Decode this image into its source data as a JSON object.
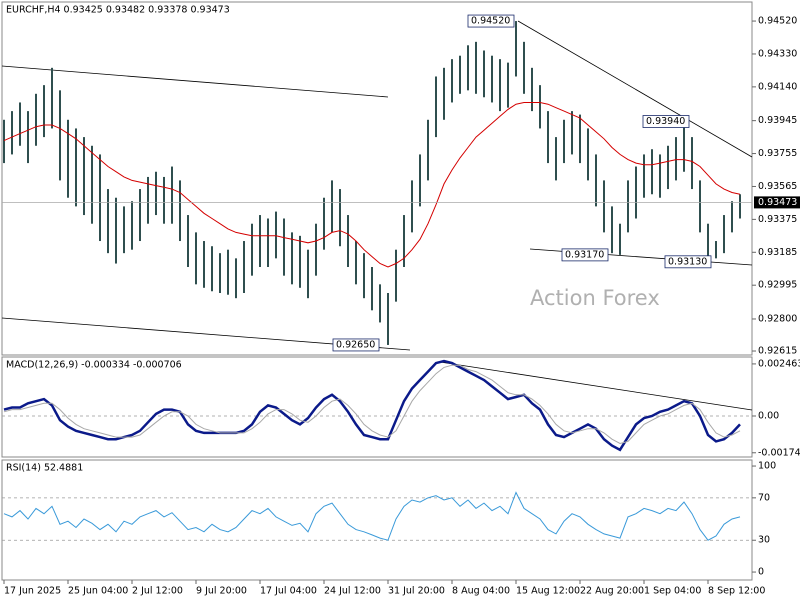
{
  "chart_data": [
    {
      "type": "range_bar",
      "title": "EURCHF,H4  0.93425 0.93482 0.93378 0.93473",
      "categories": [
        "17 Jun 2025",
        null,
        null,
        null,
        null,
        null,
        null,
        null,
        "25 Jun 04:00",
        null,
        null,
        null,
        null,
        null,
        null,
        null,
        "2 Jul 12:00",
        null,
        null,
        null,
        null,
        null,
        null,
        null,
        "9 Jul 20:00",
        null,
        null,
        null,
        null,
        null,
        null,
        null,
        "17 Jul 04:00",
        null,
        null,
        null,
        null,
        null,
        null,
        null,
        "24 Jul 12:00",
        null,
        null,
        null,
        null,
        null,
        null,
        null,
        "31 Jul 20:00",
        null,
        null,
        null,
        null,
        null,
        null,
        null,
        "8 Aug 04:00",
        null,
        null,
        null,
        null,
        null,
        null,
        null,
        "15 Aug 12:00",
        null,
        null,
        null,
        null,
        null,
        null,
        null,
        "22 Aug 20:00",
        null,
        null,
        null,
        null,
        null,
        null,
        null,
        "1 Sep 04:00",
        null,
        null,
        null,
        null,
        null,
        null,
        null,
        "8 Sep 12:00",
        null,
        null,
        null,
        null
      ],
      "high": [
        0.9395,
        0.94,
        0.9405,
        0.94,
        0.941,
        0.9415,
        0.9425,
        0.9412,
        0.9395,
        0.939,
        0.9385,
        0.938,
        0.9375,
        0.9355,
        0.935,
        0.9345,
        0.9348,
        0.9355,
        0.9362,
        0.9365,
        0.9362,
        0.9368,
        0.936,
        0.934,
        0.933,
        0.9325,
        0.9322,
        0.9318,
        0.932,
        0.9315,
        0.9325,
        0.9335,
        0.934,
        0.9338,
        0.9342,
        0.9338,
        0.933,
        0.9328,
        0.932,
        0.9335,
        0.935,
        0.936,
        0.9355,
        0.934,
        0.9325,
        0.9318,
        0.931,
        0.93,
        0.9295,
        0.932,
        0.934,
        0.936,
        0.9375,
        0.9395,
        0.942,
        0.9425,
        0.943,
        0.9432,
        0.9438,
        0.944,
        0.9435,
        0.9432,
        0.943,
        0.9428,
        0.9452,
        0.944,
        0.9425,
        0.9415,
        0.94,
        0.9385,
        0.9395,
        0.94,
        0.9398,
        0.939,
        0.9375,
        0.936,
        0.9345,
        0.9335,
        0.936,
        0.9368,
        0.9375,
        0.9378,
        0.9375,
        0.938,
        0.9385,
        0.9394,
        0.9385,
        0.936,
        0.9335,
        0.9325,
        0.934,
        0.9348,
        0.9352
      ],
      "low": [
        0.937,
        0.9375,
        0.938,
        0.937,
        0.938,
        0.9385,
        0.939,
        0.936,
        0.935,
        0.9345,
        0.934,
        0.9335,
        0.9325,
        0.9318,
        0.9312,
        0.9318,
        0.932,
        0.9325,
        0.9335,
        0.934,
        0.9335,
        0.9335,
        0.9325,
        0.931,
        0.93,
        0.9298,
        0.9296,
        0.9295,
        0.9294,
        0.9292,
        0.9295,
        0.9305,
        0.931,
        0.931,
        0.9315,
        0.9305,
        0.93,
        0.9298,
        0.9292,
        0.9305,
        0.932,
        0.933,
        0.9322,
        0.931,
        0.93,
        0.9292,
        0.9285,
        0.9278,
        0.9265,
        0.929,
        0.931,
        0.933,
        0.9345,
        0.936,
        0.9385,
        0.9395,
        0.9405,
        0.941,
        0.9412,
        0.941,
        0.9408,
        0.9405,
        0.94,
        0.9402,
        0.942,
        0.941,
        0.94,
        0.939,
        0.937,
        0.936,
        0.937,
        0.9375,
        0.937,
        0.936,
        0.9345,
        0.933,
        0.9318,
        0.9317,
        0.933,
        0.9338,
        0.935,
        0.9352,
        0.935,
        0.9355,
        0.936,
        0.9365,
        0.9355,
        0.933,
        0.9313,
        0.9315,
        0.9318,
        0.933,
        0.9338
      ],
      "color": "#2f4f4f",
      "overlay": {
        "color": "#d40000",
        "values": [
          0.9383,
          0.9385,
          0.9387,
          0.9389,
          0.9391,
          0.9392,
          0.9392,
          0.939,
          0.9387,
          0.9384,
          0.938,
          0.9376,
          0.9372,
          0.9368,
          0.9365,
          0.9362,
          0.936,
          0.9359,
          0.9358,
          0.9357,
          0.9356,
          0.9355,
          0.9353,
          0.9349,
          0.9345,
          0.9341,
          0.9338,
          0.9335,
          0.9332,
          0.933,
          0.9329,
          0.9328,
          0.9328,
          0.9328,
          0.9328,
          0.9327,
          0.9326,
          0.9325,
          0.9324,
          0.9325,
          0.9327,
          0.933,
          0.9331,
          0.9329,
          0.9325,
          0.932,
          0.9316,
          0.9312,
          0.931,
          0.9312,
          0.9315,
          0.932,
          0.9326,
          0.9335,
          0.9346,
          0.9358,
          0.9366,
          0.9373,
          0.9379,
          0.9385,
          0.9389,
          0.9393,
          0.9397,
          0.9401,
          0.9404,
          0.9405,
          0.9405,
          0.9405,
          0.9404,
          0.9402,
          0.94,
          0.9398,
          0.9396,
          0.9392,
          0.9388,
          0.9384,
          0.9379,
          0.9375,
          0.9372,
          0.937,
          0.9369,
          0.9369,
          0.937,
          0.9371,
          0.9372,
          0.9372,
          0.9371,
          0.9368,
          0.9363,
          0.9358,
          0.9355,
          0.9353,
          0.9352
        ]
      },
      "ylim": [
        0.92592,
        0.9463
      ],
      "yticks": [
        {
          "value": 0.9452,
          "label": "0.94520"
        },
        {
          "value": 0.9433,
          "label": "0.94330"
        },
        {
          "value": 0.9414,
          "label": "0.94140"
        },
        {
          "value": 0.93945,
          "label": "0.93945"
        },
        {
          "value": 0.93755,
          "label": "0.93755"
        },
        {
          "value": 0.93565,
          "label": "0.93565"
        },
        {
          "value": 0.93375,
          "label": "0.93375"
        },
        {
          "value": 0.93185,
          "label": "0.93185"
        },
        {
          "value": 0.92995,
          "label": "0.92995"
        },
        {
          "value": 0.928,
          "label": "0.92800"
        },
        {
          "value": 0.92615,
          "label": "0.92615"
        }
      ],
      "last_price": {
        "value": 0.93473,
        "label": "0.93473"
      },
      "annotations": [
        {
          "value": 0.9452,
          "label": "0.94520"
        },
        {
          "value": 0.9394,
          "label": "0.93940"
        },
        {
          "value": 0.9317,
          "label": "0.93170"
        },
        {
          "value": 0.9313,
          "label": "0.93130"
        },
        {
          "value": 0.9265,
          "label": "0.92650"
        }
      ],
      "watermark": "Action Forex"
    },
    {
      "type": "line",
      "title": "MACD(12,26,9) -0.000334 -0.000706",
      "series": [
        {
          "color": "#0b1a8a",
          "values": [
            0.0003,
            0.0004,
            0.0004,
            0.0006,
            0.0007,
            0.0008,
            0.0005,
            -0.0002,
            -0.0005,
            -0.0007,
            -0.0008,
            -0.0009,
            -0.001,
            -0.0011,
            -0.0011,
            -0.001,
            -0.0009,
            -0.0007,
            -0.0003,
            0.0001,
            0.0003,
            0.0003,
            0.0002,
            -0.0004,
            -0.0007,
            -0.0008,
            -0.0008,
            -0.0008,
            -0.0008,
            -0.0008,
            -0.0007,
            -0.0004,
            0.0002,
            0.0005,
            0.0004,
            0.0001,
            -0.0002,
            -0.0004,
            -0.0001,
            0.0004,
            0.0008,
            0.001,
            0.0007,
            0.0002,
            -0.0004,
            -0.0009,
            -0.001,
            -0.0011,
            -0.0011,
            -0.0002,
            0.0007,
            0.0013,
            0.0017,
            0.0021,
            0.0025,
            0.0026,
            0.0025,
            0.0023,
            0.0021,
            0.0019,
            0.0017,
            0.0014,
            0.0011,
            0.0008,
            0.0009,
            0.001,
            0.0006,
            0.0003,
            -0.0004,
            -0.0009,
            -0.001,
            -0.0008,
            -0.0006,
            -0.0004,
            -0.0006,
            -0.0011,
            -0.0014,
            -0.0016,
            -0.001,
            -0.0004,
            -0.0001,
            0,
            0.0002,
            0.0003,
            0.0005,
            0.0007,
            0.0006,
            0,
            -0.0009,
            -0.0012,
            -0.0011,
            -0.0008,
            -0.0004
          ]
        },
        {
          "color": "#a8a8a8",
          "values": [
            0.0002,
            0.0003,
            0.0003,
            0.0004,
            0.0005,
            0.0006,
            0.0006,
            0.0003,
            -0.0001,
            -0.0004,
            -0.0006,
            -0.0007,
            -0.0008,
            -0.0009,
            -0.001,
            -0.001,
            -0.001,
            -0.0009,
            -0.0006,
            -0.0003,
            0,
            0.0002,
            0.0002,
            0,
            -0.0004,
            -0.0006,
            -0.0007,
            -0.0008,
            -0.0008,
            -0.0008,
            -0.0008,
            -0.0006,
            -0.0003,
            0.0001,
            0.0003,
            0.0003,
            0.0001,
            -0.0002,
            -0.0003,
            0,
            0.0004,
            0.0007,
            0.0008,
            0.0005,
            0.0001,
            -0.0004,
            -0.0007,
            -0.0009,
            -0.001,
            -0.0007,
            0,
            0.0007,
            0.0012,
            0.0016,
            0.002,
            0.0023,
            0.0024,
            0.0024,
            0.0022,
            0.0021,
            0.0019,
            0.0017,
            0.0014,
            0.0011,
            0.001,
            0.001,
            0.0008,
            0.0005,
            0.0001,
            -0.0004,
            -0.0007,
            -0.0008,
            -0.0007,
            -0.0006,
            -0.0006,
            -0.0008,
            -0.0011,
            -0.0013,
            -0.0012,
            -0.0008,
            -0.0004,
            -0.0002,
            0,
            0.0001,
            0.0003,
            0.0005,
            0.0006,
            0.0003,
            -0.0003,
            -0.0008,
            -0.001,
            -0.0009,
            -0.0007
          ]
        }
      ],
      "ylim": [
        -0.00194,
        0.00279
      ],
      "yticks": [
        0.002463,
        {
          "value": 0,
          "label": "0.00"
        },
        -0.00174
      ],
      "grid": true
    },
    {
      "type": "line",
      "title": "RSI(14) 52.4881",
      "series": [
        {
          "color": "#3a9ad9",
          "values": [
            55,
            52,
            58,
            50,
            60,
            55,
            62,
            45,
            48,
            42,
            50,
            46,
            40,
            45,
            38,
            48,
            45,
            52,
            55,
            58,
            52,
            56,
            48,
            40,
            42,
            38,
            45,
            40,
            38,
            42,
            50,
            58,
            55,
            60,
            52,
            48,
            44,
            46,
            38,
            55,
            62,
            65,
            55,
            45,
            40,
            38,
            35,
            32,
            30,
            50,
            62,
            68,
            66,
            70,
            72,
            68,
            70,
            62,
            68,
            60,
            65,
            58,
            62,
            55,
            75,
            60,
            55,
            50,
            40,
            36,
            48,
            55,
            52,
            45,
            40,
            36,
            34,
            32,
            52,
            55,
            60,
            58,
            55,
            60,
            58,
            66,
            55,
            40,
            30,
            34,
            45,
            50,
            52
          ]
        }
      ],
      "ylim": [
        -7.5,
        105.7
      ],
      "yticks": [
        100,
        70,
        30,
        0
      ],
      "grid": true
    }
  ]
}
